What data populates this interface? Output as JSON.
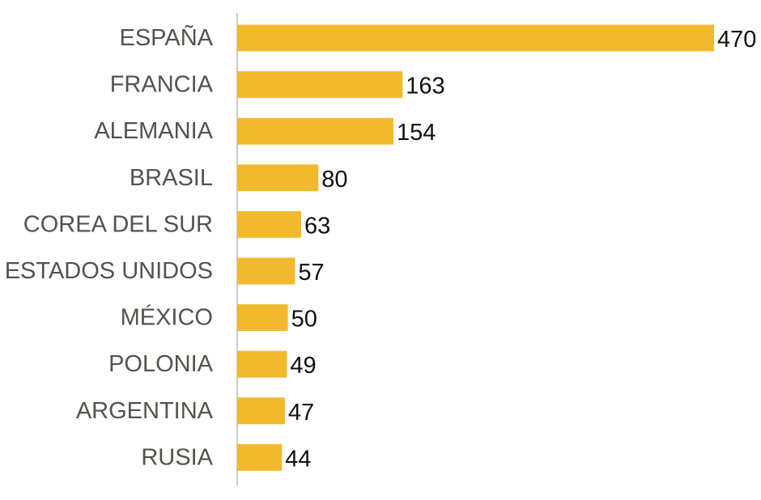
{
  "chart_data": {
    "type": "bar",
    "orientation": "horizontal",
    "categories": [
      "ESPAÑA",
      "FRANCIA",
      "ALEMANIA",
      "BRASIL",
      "COREA DEL SUR",
      "ESTADOS UNIDOS",
      "MÉXICO",
      "POLONIA",
      "ARGENTINA",
      "RUSIA"
    ],
    "values": [
      470,
      163,
      154,
      80,
      63,
      57,
      50,
      49,
      47,
      44
    ],
    "xlim": [
      0,
      470
    ],
    "grid": false,
    "legend": "none",
    "data_labels": true
  },
  "colors": {
    "bar": "#f2b92d",
    "axis": "#b8b8b8",
    "category_text": "#55524c",
    "value_text": "#111111"
  }
}
